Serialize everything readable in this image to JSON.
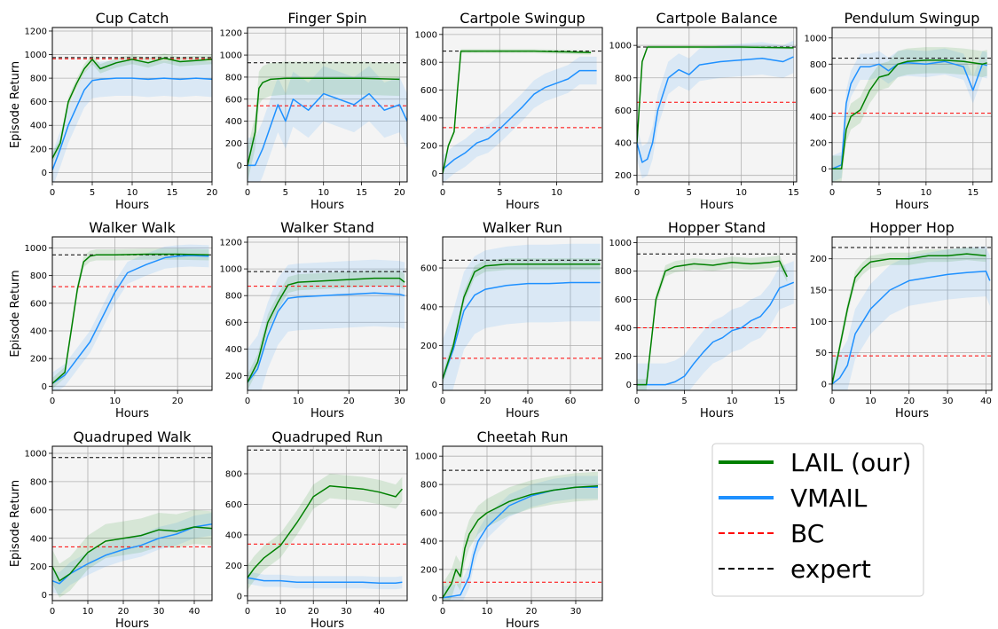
{
  "colors": {
    "lail": "#008000",
    "vmail": "#1e90ff",
    "bc": "#ff0000",
    "expert": "#000000",
    "panel_bg": "#f4f4f4",
    "grid": "#b0b0b0"
  },
  "legend": {
    "items": [
      {
        "label": "LAIL (our)",
        "color": "#008000",
        "style": "solid"
      },
      {
        "label": "VMAIL",
        "color": "#1e90ff",
        "style": "solid"
      },
      {
        "label": "BC",
        "color": "#ff0000",
        "style": "dashed"
      },
      {
        "label": "expert",
        "color": "#000000",
        "style": "dashed"
      }
    ]
  },
  "chart_data": [
    {
      "type": "line",
      "title": "Cup Catch",
      "xlabel": "Hours",
      "ylabel": "Episode Return",
      "xlim": [
        0,
        20
      ],
      "ylim": [
        -80,
        1230
      ],
      "xticks": [
        0,
        5,
        10,
        15,
        20
      ],
      "yticks": [
        0,
        200,
        400,
        600,
        800,
        1000,
        1200
      ],
      "expert": 975,
      "bc": 965,
      "series": [
        {
          "name": "LAIL (our)",
          "x": [
            0,
            1,
            2,
            3,
            4,
            5,
            6,
            8,
            10,
            12,
            14,
            16,
            18,
            20
          ],
          "y": [
            120,
            250,
            600,
            750,
            880,
            960,
            880,
            930,
            960,
            930,
            970,
            940,
            950,
            960
          ],
          "band": 40
        },
        {
          "name": "VMAIL",
          "x": [
            0,
            1,
            2,
            3,
            4,
            5,
            6,
            8,
            10,
            12,
            14,
            16,
            18,
            20
          ],
          "y": [
            20,
            200,
            400,
            550,
            700,
            780,
            790,
            800,
            800,
            790,
            800,
            790,
            800,
            790
          ],
          "band": 150
        }
      ]
    },
    {
      "type": "line",
      "title": "Finger Spin",
      "xlabel": "Hours",
      "ylim": [
        -150,
        1250
      ],
      "xlim": [
        0,
        21
      ],
      "xticks": [
        0,
        5,
        10,
        15,
        20
      ],
      "yticks": [
        0,
        200,
        400,
        600,
        800,
        1000,
        1200
      ],
      "expert": 930,
      "bc": 540,
      "series": [
        {
          "name": "LAIL (our)",
          "x": [
            0,
            1,
            1.5,
            2,
            3,
            5,
            10,
            15,
            20
          ],
          "y": [
            0,
            300,
            700,
            750,
            780,
            790,
            790,
            790,
            780
          ],
          "band": 150
        },
        {
          "name": "VMAIL",
          "x": [
            0,
            1,
            2,
            3,
            4,
            5,
            6,
            8,
            10,
            12,
            14,
            16,
            18,
            20,
            21
          ],
          "y": [
            0,
            0,
            150,
            350,
            550,
            400,
            600,
            500,
            650,
            600,
            550,
            650,
            500,
            550,
            400
          ],
          "band": 250
        }
      ]
    },
    {
      "type": "line",
      "title": "Cartpole Swingup",
      "xlabel": "Hours",
      "ylim": [
        -60,
        1050
      ],
      "xlim": [
        0,
        14
      ],
      "xticks": [
        0,
        5,
        10
      ],
      "yticks": [
        0,
        200,
        400,
        600,
        800,
        1000
      ],
      "expert": 880,
      "bc": 330,
      "series": [
        {
          "name": "LAIL (our)",
          "x": [
            0,
            0.5,
            1,
            1.3,
            1.6,
            2,
            4,
            8,
            13
          ],
          "y": [
            0,
            200,
            300,
            600,
            880,
            880,
            880,
            880,
            870
          ],
          "band": 15
        },
        {
          "name": "VMAIL",
          "x": [
            0,
            1,
            2,
            3,
            4,
            5,
            6,
            7,
            8,
            9,
            10,
            11,
            12,
            13.5
          ],
          "y": [
            30,
            100,
            150,
            220,
            250,
            320,
            400,
            480,
            570,
            620,
            650,
            680,
            740,
            740
          ],
          "band": 100
        }
      ]
    },
    {
      "type": "line",
      "title": "Cartpole Balance",
      "xlabel": "Hours",
      "ylim": [
        160,
        1110
      ],
      "xlim": [
        0,
        15.3
      ],
      "xticks": [
        0,
        5,
        10,
        15
      ],
      "yticks": [
        200,
        400,
        600,
        800,
        1000
      ],
      "expert": 990,
      "bc": 650,
      "series": [
        {
          "name": "LAIL (our)",
          "x": [
            0,
            0.5,
            1,
            2,
            5,
            10,
            15
          ],
          "y": [
            400,
            900,
            990,
            990,
            990,
            990,
            985
          ],
          "band": 10
        },
        {
          "name": "VMAIL",
          "x": [
            0,
            0.5,
            1,
            1.5,
            2,
            3,
            4,
            5,
            6,
            8,
            10,
            12,
            14,
            15
          ],
          "y": [
            400,
            280,
            300,
            400,
            600,
            800,
            850,
            820,
            880,
            900,
            910,
            920,
            900,
            930
          ],
          "band": 100
        }
      ]
    },
    {
      "type": "line",
      "title": "Pendulum Swingup",
      "xlabel": "Hours",
      "ylim": [
        -100,
        1080
      ],
      "xlim": [
        0,
        17
      ],
      "xticks": [
        0,
        5,
        10,
        15
      ],
      "yticks": [
        0,
        200,
        400,
        600,
        800,
        1000
      ],
      "expert": 845,
      "bc": 425,
      "series": [
        {
          "name": "LAIL (our)",
          "x": [
            0,
            1,
            1.5,
            2,
            3,
            4,
            5,
            6,
            7,
            8,
            10,
            12,
            14,
            16,
            16.5
          ],
          "y": [
            0,
            0,
            300,
            400,
            450,
            600,
            700,
            720,
            800,
            820,
            830,
            830,
            820,
            800,
            810
          ],
          "band": 100
        },
        {
          "name": "VMAIL",
          "x": [
            0,
            1,
            1.5,
            2,
            3,
            4,
            5,
            6,
            7,
            8,
            10,
            12,
            14,
            15,
            16,
            16.5
          ],
          "y": [
            0,
            30,
            500,
            650,
            780,
            780,
            800,
            750,
            800,
            810,
            800,
            820,
            780,
            600,
            800,
            790
          ],
          "band": 100
        }
      ]
    },
    {
      "type": "line",
      "title": "Walker Walk",
      "xlabel": "Hours",
      "ylabel": "Episode Return",
      "ylim": [
        -30,
        1080
      ],
      "xlim": [
        0,
        25.5
      ],
      "xticks": [
        0,
        10,
        20
      ],
      "yticks": [
        0,
        200,
        400,
        600,
        800,
        1000
      ],
      "expert": 950,
      "bc": 720,
      "series": [
        {
          "name": "LAIL (our)",
          "x": [
            0,
            2,
            3,
            4,
            5,
            6,
            7,
            10,
            15,
            20,
            25
          ],
          "y": [
            20,
            100,
            400,
            700,
            900,
            940,
            950,
            950,
            955,
            955,
            950
          ],
          "band": 40
        },
        {
          "name": "VMAIL",
          "x": [
            0,
            2,
            4,
            6,
            8,
            10,
            12,
            15,
            18,
            20,
            22,
            25
          ],
          "y": [
            20,
            80,
            200,
            320,
            500,
            680,
            820,
            880,
            930,
            940,
            945,
            940
          ],
          "band": 80
        }
      ]
    },
    {
      "type": "line",
      "title": "Walker Stand",
      "xlabel": "Hours",
      "ylim": [
        90,
        1240
      ],
      "xlim": [
        0,
        31.5
      ],
      "xticks": [
        0,
        10,
        20,
        30
      ],
      "yticks": [
        200,
        400,
        600,
        800,
        1000,
        1200
      ],
      "expert": 980,
      "bc": 870,
      "series": [
        {
          "name": "LAIL (our)",
          "x": [
            0,
            2,
            4,
            6,
            8,
            10,
            15,
            20,
            25,
            30,
            31
          ],
          "y": [
            150,
            300,
            600,
            750,
            880,
            900,
            910,
            920,
            930,
            930,
            900
          ],
          "band": 60
        },
        {
          "name": "VMAIL",
          "x": [
            0,
            2,
            4,
            6,
            8,
            10,
            15,
            20,
            25,
            30,
            31
          ],
          "y": [
            150,
            250,
            500,
            680,
            780,
            790,
            800,
            810,
            820,
            810,
            800
          ],
          "band": 250
        }
      ]
    },
    {
      "type": "line",
      "title": "Walker Run",
      "xlabel": "Hours",
      "ylim": [
        -30,
        760
      ],
      "xlim": [
        0,
        75
      ],
      "xticks": [
        0,
        20,
        40,
        60
      ],
      "yticks": [
        0,
        200,
        400,
        600
      ],
      "expert": 640,
      "bc": 135,
      "series": [
        {
          "name": "LAIL (our)",
          "x": [
            0,
            5,
            10,
            15,
            20,
            30,
            40,
            50,
            60,
            74
          ],
          "y": [
            30,
            200,
            450,
            580,
            610,
            620,
            620,
            620,
            620,
            620
          ],
          "band": 30
        },
        {
          "name": "VMAIL",
          "x": [
            0,
            5,
            10,
            15,
            20,
            30,
            40,
            50,
            60,
            74
          ],
          "y": [
            30,
            180,
            380,
            460,
            490,
            510,
            520,
            520,
            525,
            525
          ],
          "band": 200
        }
      ]
    },
    {
      "type": "line",
      "title": "Hopper Stand",
      "xlabel": "Hours",
      "ylim": [
        -40,
        1040
      ],
      "xlim": [
        0,
        16.8
      ],
      "xticks": [
        0,
        5,
        10,
        15
      ],
      "yticks": [
        0,
        200,
        400,
        600,
        800,
        1000
      ],
      "expert": 920,
      "bc": 400,
      "series": [
        {
          "name": "LAIL (our)",
          "x": [
            0,
            1,
            1.5,
            2,
            3,
            4,
            6,
            8,
            10,
            12,
            14,
            15,
            15.8
          ],
          "y": [
            0,
            0,
            300,
            600,
            800,
            830,
            850,
            840,
            860,
            850,
            860,
            870,
            760
          ],
          "band": 40
        },
        {
          "name": "VMAIL",
          "x": [
            0,
            2,
            3,
            4,
            5,
            6,
            7,
            8,
            9,
            10,
            11,
            12,
            13,
            14,
            15,
            16.5
          ],
          "y": [
            0,
            0,
            0,
            20,
            60,
            150,
            230,
            300,
            330,
            380,
            400,
            450,
            480,
            560,
            680,
            720
          ],
          "band": 150
        }
      ]
    },
    {
      "type": "line",
      "title": "Hopper Hop",
      "xlabel": "Hours",
      "ylim": [
        -10,
        235
      ],
      "xlim": [
        0,
        41.5
      ],
      "xticks": [
        0,
        10,
        20,
        30,
        40
      ],
      "yticks": [
        0,
        50,
        100,
        150,
        200
      ],
      "expert": 218,
      "bc": 45,
      "series": [
        {
          "name": "LAIL (our)",
          "x": [
            0,
            2,
            4,
            6,
            8,
            10,
            15,
            20,
            25,
            30,
            35,
            40
          ],
          "y": [
            0,
            60,
            120,
            170,
            185,
            195,
            200,
            200,
            205,
            205,
            208,
            205
          ],
          "band": 10
        },
        {
          "name": "VMAIL",
          "x": [
            0,
            2,
            4,
            6,
            8,
            10,
            15,
            20,
            25,
            30,
            35,
            40,
            41
          ],
          "y": [
            0,
            10,
            30,
            80,
            100,
            120,
            150,
            165,
            170,
            175,
            178,
            180,
            165
          ],
          "band": 40
        }
      ]
    },
    {
      "type": "line",
      "title": "Quadruped Walk",
      "xlabel": "Hours",
      "ylabel": "Episode Return",
      "ylim": [
        -40,
        1050
      ],
      "xlim": [
        0,
        45
      ],
      "xticks": [
        0,
        10,
        20,
        30,
        40
      ],
      "yticks": [
        0,
        200,
        400,
        600,
        800,
        1000
      ],
      "expert": 970,
      "bc": 340,
      "series": [
        {
          "name": "LAIL (our)",
          "x": [
            0,
            2,
            5,
            10,
            15,
            20,
            25,
            30,
            35,
            40,
            45
          ],
          "y": [
            200,
            100,
            150,
            300,
            380,
            400,
            420,
            460,
            450,
            480,
            470
          ],
          "band": 120
        },
        {
          "name": "VMAIL",
          "x": [
            0,
            2,
            5,
            10,
            15,
            20,
            25,
            30,
            35,
            40,
            45
          ],
          "y": [
            100,
            80,
            150,
            220,
            280,
            320,
            350,
            400,
            430,
            480,
            500
          ],
          "band": 80
        }
      ]
    },
    {
      "type": "line",
      "title": "Quadruped Run",
      "xlabel": "Hours",
      "ylim": [
        -30,
        980
      ],
      "xlim": [
        0,
        48.5
      ],
      "xticks": [
        0,
        10,
        20,
        30,
        40
      ],
      "yticks": [
        0,
        200,
        400,
        600,
        800
      ],
      "expert": 955,
      "bc": 340,
      "series": [
        {
          "name": "LAIL (our)",
          "x": [
            0,
            2,
            5,
            10,
            15,
            18,
            20,
            25,
            30,
            35,
            40,
            45,
            47
          ],
          "y": [
            120,
            180,
            250,
            330,
            480,
            580,
            650,
            720,
            710,
            700,
            680,
            650,
            700
          ],
          "band": 80
        },
        {
          "name": "VMAIL",
          "x": [
            0,
            5,
            10,
            15,
            20,
            25,
            30,
            35,
            40,
            45,
            47
          ],
          "y": [
            120,
            100,
            100,
            90,
            90,
            90,
            90,
            90,
            85,
            85,
            90
          ],
          "band": 40
        }
      ]
    },
    {
      "type": "line",
      "title": "Cheetah Run",
      "xlabel": "Hours",
      "ylim": [
        -20,
        1070
      ],
      "xlim": [
        0,
        36
      ],
      "xticks": [
        0,
        10,
        20,
        30
      ],
      "yticks": [
        0,
        200,
        400,
        600,
        800,
        1000
      ],
      "expert": 900,
      "bc": 110,
      "series": [
        {
          "name": "LAIL (our)",
          "x": [
            0,
            2,
            3,
            4,
            5,
            6,
            8,
            10,
            15,
            20,
            25,
            30,
            35
          ],
          "y": [
            0,
            100,
            200,
            150,
            350,
            450,
            550,
            600,
            680,
            730,
            760,
            780,
            790
          ],
          "band": 100
        },
        {
          "name": "VMAIL",
          "x": [
            0,
            2,
            4,
            6,
            7,
            8,
            10,
            15,
            20,
            25,
            30,
            35
          ],
          "y": [
            0,
            10,
            20,
            150,
            300,
            400,
            500,
            650,
            720,
            760,
            780,
            780
          ],
          "band": 80
        }
      ]
    }
  ]
}
